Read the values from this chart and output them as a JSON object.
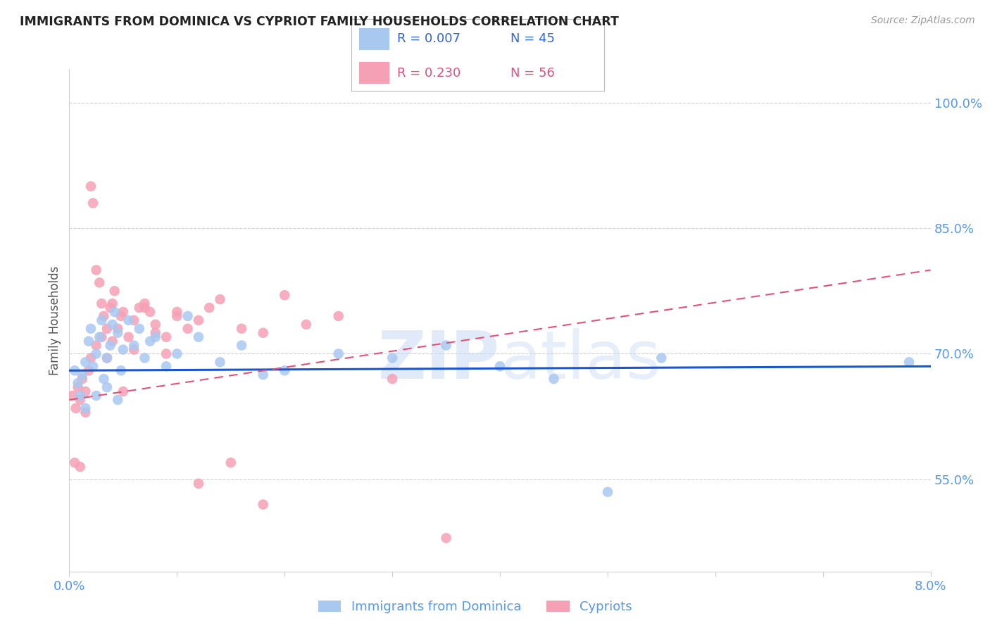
{
  "title": "IMMIGRANTS FROM DOMINICA VS CYPRIOT FAMILY HOUSEHOLDS CORRELATION CHART",
  "source": "Source: ZipAtlas.com",
  "ylabel": "Family Households",
  "right_yticks": [
    55.0,
    70.0,
    85.0,
    100.0
  ],
  "xlim": [
    0.0,
    8.0
  ],
  "ylim": [
    44.0,
    104.0
  ],
  "watermark": "ZIPatlas",
  "series1_label": "Immigrants from Dominica",
  "series1_R": "0.007",
  "series1_N": "45",
  "series1_color": "#a8c8f0",
  "series1_line_color": "#1a56cc",
  "series2_label": "Cypriots",
  "series2_R": "0.230",
  "series2_N": "56",
  "series2_color": "#f5a0b5",
  "series2_line_color": "#e8507a",
  "grid_color": "#d0d0d0",
  "tick_color": "#5599ee",
  "legend_text_blue": "#3366dd",
  "legend_text_pink": "#e05080",
  "series1_x": [
    0.05,
    0.08,
    0.1,
    0.12,
    0.15,
    0.18,
    0.2,
    0.22,
    0.25,
    0.28,
    0.3,
    0.32,
    0.35,
    0.38,
    0.4,
    0.42,
    0.45,
    0.48,
    0.5,
    0.55,
    0.6,
    0.65,
    0.7,
    0.75,
    0.8,
    0.9,
    1.0,
    1.1,
    1.2,
    1.4,
    1.6,
    1.8,
    2.0,
    2.5,
    3.0,
    3.5,
    4.0,
    4.5,
    5.0,
    5.5,
    0.15,
    0.25,
    0.35,
    0.45,
    7.8
  ],
  "series1_y": [
    68.0,
    66.5,
    65.0,
    67.5,
    69.0,
    71.5,
    73.0,
    68.5,
    70.0,
    72.0,
    74.0,
    67.0,
    69.5,
    71.0,
    73.5,
    75.0,
    72.5,
    68.0,
    70.5,
    74.0,
    71.0,
    73.0,
    69.5,
    71.5,
    72.0,
    68.5,
    70.0,
    74.5,
    72.0,
    69.0,
    71.0,
    67.5,
    68.0,
    70.0,
    69.5,
    71.0,
    68.5,
    67.0,
    53.5,
    69.5,
    63.5,
    65.0,
    66.0,
    64.5,
    69.0
  ],
  "series2_x": [
    0.03,
    0.06,
    0.08,
    0.1,
    0.12,
    0.15,
    0.18,
    0.2,
    0.22,
    0.25,
    0.28,
    0.3,
    0.32,
    0.35,
    0.38,
    0.4,
    0.42,
    0.45,
    0.48,
    0.5,
    0.55,
    0.6,
    0.65,
    0.7,
    0.75,
    0.8,
    0.9,
    1.0,
    1.1,
    1.2,
    1.3,
    1.4,
    1.6,
    1.8,
    2.0,
    2.2,
    2.5,
    3.0,
    3.5,
    0.05,
    0.1,
    0.15,
    0.2,
    0.25,
    0.3,
    0.35,
    0.4,
    0.5,
    0.6,
    0.7,
    0.8,
    0.9,
    1.0,
    1.2,
    1.5,
    1.8
  ],
  "series2_y": [
    65.0,
    63.5,
    66.0,
    64.5,
    67.0,
    65.5,
    68.0,
    90.0,
    88.0,
    80.0,
    78.5,
    76.0,
    74.5,
    73.0,
    75.5,
    76.0,
    77.5,
    73.0,
    74.5,
    65.5,
    72.0,
    74.0,
    75.5,
    76.0,
    75.0,
    73.5,
    72.0,
    74.5,
    73.0,
    74.0,
    75.5,
    76.5,
    73.0,
    72.5,
    77.0,
    73.5,
    74.5,
    67.0,
    48.0,
    57.0,
    56.5,
    63.0,
    69.5,
    71.0,
    72.0,
    69.5,
    71.5,
    75.0,
    70.5,
    75.5,
    72.5,
    70.0,
    75.0,
    54.5,
    57.0,
    52.0
  ]
}
